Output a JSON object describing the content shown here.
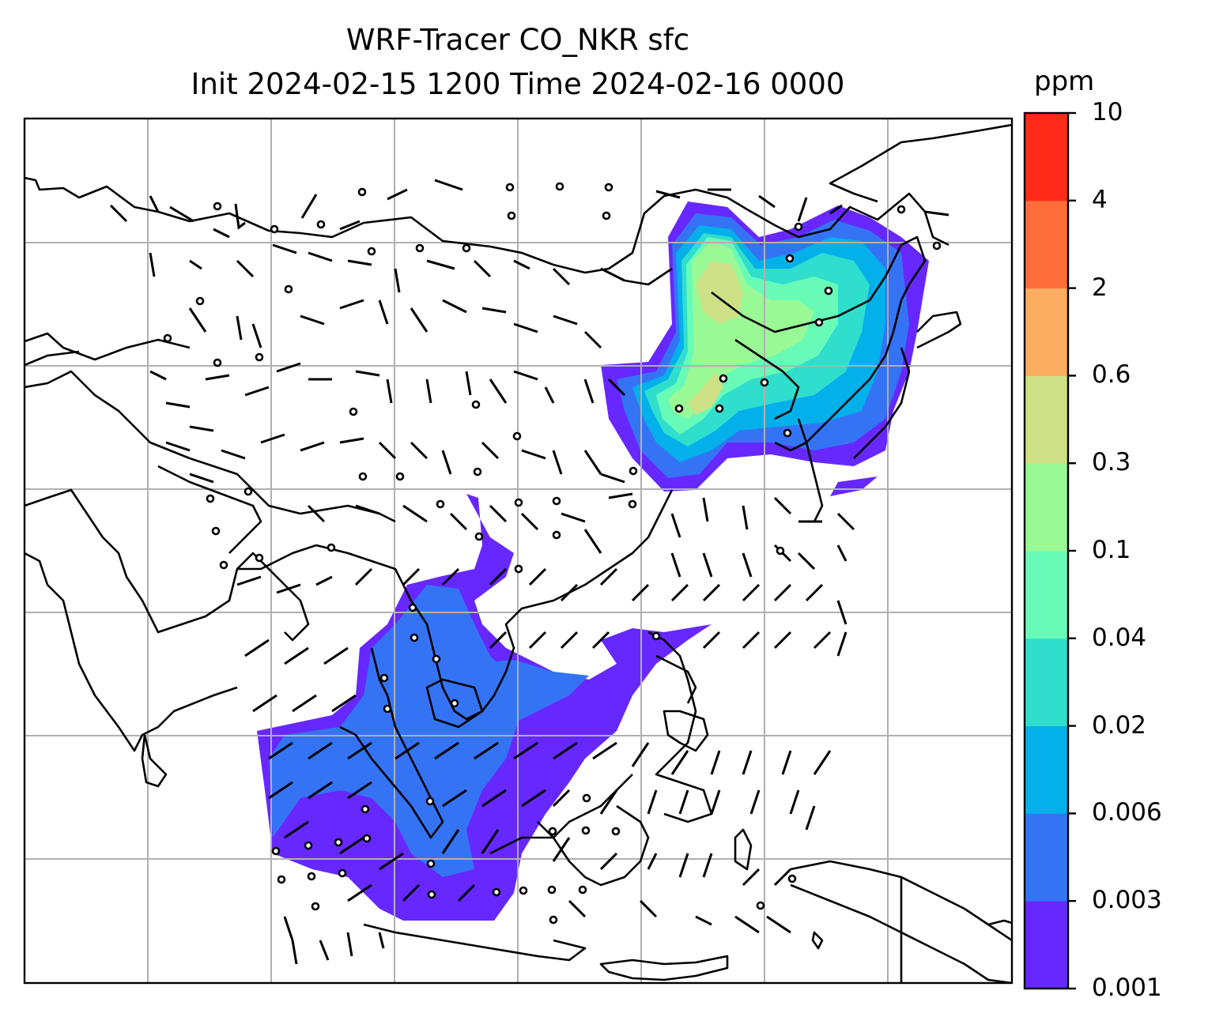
{
  "title": {
    "line1": "WRF-Tracer CO_NKR sfc",
    "line2": "Init 2024-02-15 1200 Time 2024-02-16 0000"
  },
  "colorbar": {
    "unit": "ppm",
    "levels": [
      "0.001",
      "0.003",
      "0.006",
      "0.02",
      "0.04",
      "0.1",
      "0.3",
      "0.6",
      "2",
      "4",
      "10"
    ],
    "colors": [
      "#6628ff",
      "#3573f5",
      "#03b0ea",
      "#2fdecd",
      "#68fbb8",
      "#99f995",
      "#cee085",
      "#fdad62",
      "#ff6d3a",
      "#ff2a18"
    ]
  },
  "map": {
    "gridlines": true,
    "grid_color": "#b0b0b0",
    "coastline_color": "#000000",
    "plume_fields": [
      "China/Korea/Japan region plume",
      "Southeast Asia plume"
    ],
    "wind_barbs": true
  }
}
